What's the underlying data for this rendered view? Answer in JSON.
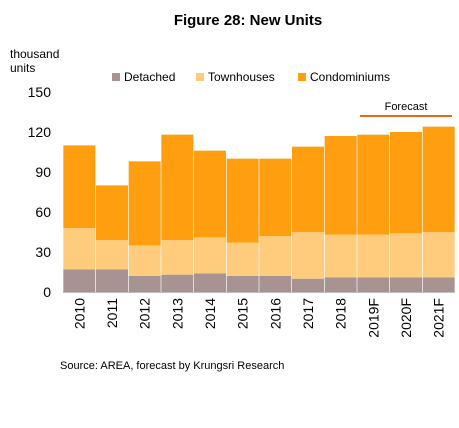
{
  "chart_data": {
    "type": "bar",
    "stacked": true,
    "title": "Figure 28: New Units",
    "ylabel": "thousand units",
    "xlabel": "",
    "ylim": [
      0,
      150
    ],
    "yticks": [
      0,
      30,
      60,
      90,
      120,
      150
    ],
    "grid": false,
    "legend_position": "top",
    "categories": [
      "2010",
      "2011",
      "2012",
      "2013",
      "2014",
      "2015",
      "2016",
      "2017",
      "2018",
      "2019F",
      "2020F",
      "2021F"
    ],
    "series": [
      {
        "name": "Detached",
        "color": "#A79391",
        "values": [
          17,
          17,
          12,
          13,
          14,
          12,
          12,
          10,
          11,
          11,
          11,
          11
        ]
      },
      {
        "name": "Townhouses",
        "color": "#FFCB7D",
        "values": [
          31,
          22,
          23,
          26,
          27,
          25,
          30,
          35,
          32,
          32,
          33,
          34
        ]
      },
      {
        "name": "Condominiums",
        "color": "#FF9F10",
        "values": [
          62,
          41,
          63,
          79,
          65,
          63,
          58,
          64,
          74,
          75,
          76,
          79
        ]
      }
    ],
    "annotation": {
      "label": "Forecast",
      "color": "#E8671E",
      "categories": [
        "2019F",
        "2020F",
        "2021F"
      ]
    },
    "source": "Source: AREA, forecast by Krungsri Research"
  }
}
